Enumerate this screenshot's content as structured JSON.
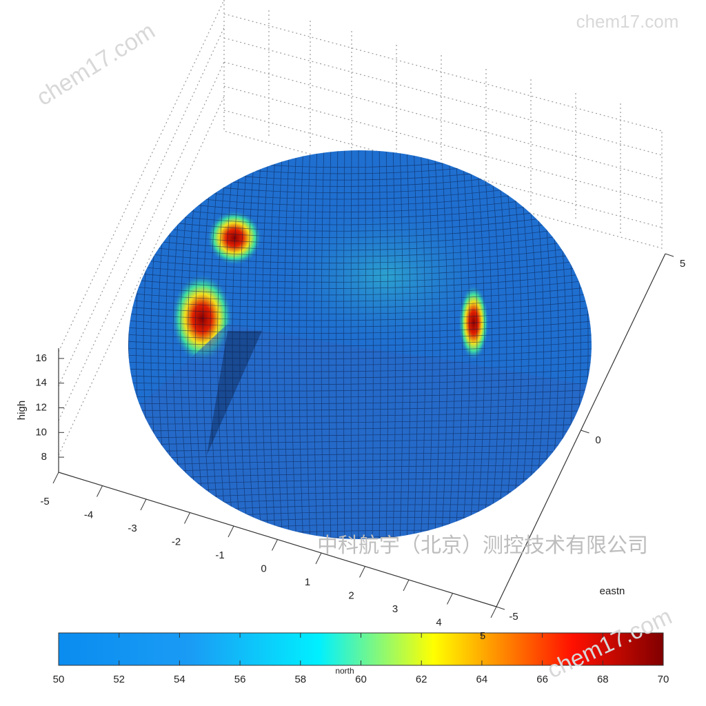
{
  "chart_data": {
    "type": "surface",
    "xlabel": "north",
    "ylabel": "eastn",
    "zlabel": "high",
    "xlim": [
      -5,
      5
    ],
    "xticks": [
      -5,
      -4,
      -3,
      -2,
      -1,
      0,
      1,
      2,
      3,
      4,
      5
    ],
    "ylim": [
      -5,
      5
    ],
    "yticks": [
      -5,
      0,
      5
    ],
    "zlim": [
      7,
      17
    ],
    "zticks": [
      8,
      10,
      12,
      14,
      16
    ],
    "colorbar": {
      "clim": [
        50,
        70
      ],
      "ticks": [
        50,
        52,
        54,
        56,
        58,
        60,
        62,
        64,
        66,
        68,
        70
      ],
      "colormap": "jet"
    },
    "grid": true
  },
  "watermarks": [
    "chem17.com",
    "chem17.com",
    "chem17.com",
    "中科航宇（北京）测控技术有限公司"
  ]
}
